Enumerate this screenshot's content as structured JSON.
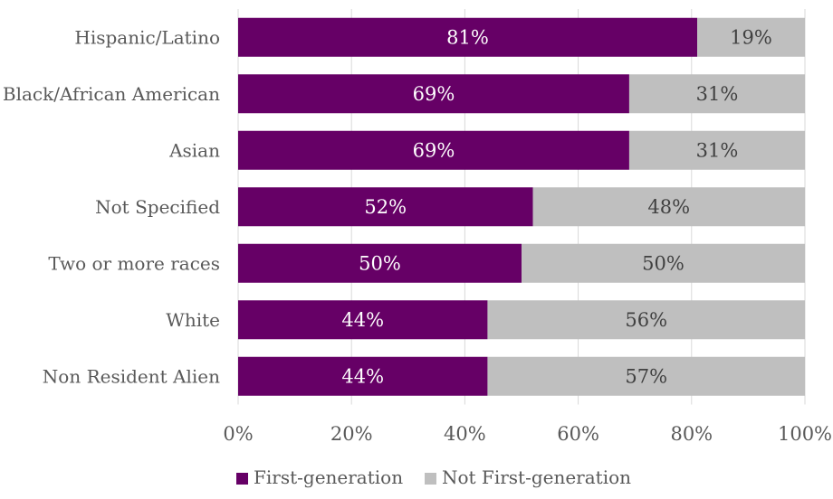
{
  "chart_data": {
    "type": "bar",
    "orientation": "horizontal",
    "stacked": "percent",
    "categories": [
      "Hispanic/Latino",
      "Black/African American",
      "Asian",
      "Not Specified",
      "Two or more races",
      "White",
      "Non Resident Alien"
    ],
    "series": [
      {
        "name": "First-generation",
        "color": "#660066",
        "values": [
          81,
          69,
          69,
          52,
          50,
          44,
          44
        ],
        "labels": [
          "81%",
          "69%",
          "69%",
          "52%",
          "50%",
          "44%",
          "44%"
        ]
      },
      {
        "name": "Not First-generation",
        "color": "#bfbfbf",
        "values": [
          19,
          31,
          31,
          48,
          50,
          56,
          57
        ],
        "labels": [
          "19%",
          "31%",
          "31%",
          "48%",
          "50%",
          "56%",
          "57%"
        ]
      }
    ],
    "xlim": [
      0,
      100
    ],
    "xticks": [
      "0%",
      "20%",
      "40%",
      "60%",
      "80%",
      "100%"
    ],
    "grid": true,
    "legend": "bottom",
    "label_colors": {
      "first": "#ffffff",
      "second": "#404040"
    }
  }
}
